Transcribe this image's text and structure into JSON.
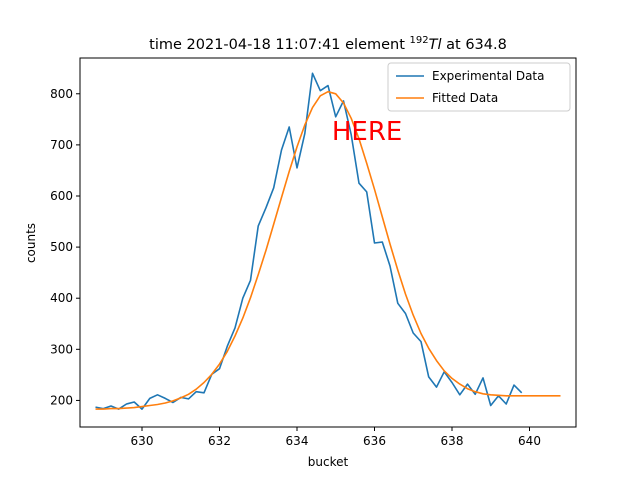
{
  "chart_data": {
    "type": "line",
    "title": {
      "prefix": "time 2021-04-18 11:07:41 element ",
      "superscript": "192",
      "element": "Tl",
      "suffix": " at 634.8"
    },
    "xlabel": "bucket",
    "ylabel": "counts",
    "xlim": [
      628.4,
      641.2
    ],
    "ylim": [
      148,
      870
    ],
    "xticks": [
      630,
      632,
      634,
      636,
      638,
      640
    ],
    "yticks": [
      200,
      300,
      400,
      500,
      600,
      700,
      800
    ],
    "grid": false,
    "legend_position": "top-right",
    "annotation": {
      "text": "HERE",
      "x": 634.9,
      "y": 710,
      "color": "#ff0000"
    },
    "series": [
      {
        "name": "Experimental Data",
        "color": "#1f77b4",
        "x": [
          628.8,
          629.0,
          629.2,
          629.4,
          629.6,
          629.8,
          630.0,
          630.2,
          630.4,
          630.6,
          630.8,
          631.0,
          631.2,
          631.4,
          631.6,
          631.8,
          632.0,
          632.2,
          632.4,
          632.6,
          632.8,
          633.0,
          633.2,
          633.4,
          633.6,
          633.8,
          634.0,
          634.2,
          634.4,
          634.6,
          634.8,
          635.0,
          635.2,
          635.4,
          635.6,
          635.8,
          636.0,
          636.2,
          636.4,
          636.6,
          636.8,
          637.0,
          637.2,
          637.4,
          637.6,
          637.8,
          638.0,
          638.2,
          638.4,
          638.6,
          638.8,
          639.0,
          639.2,
          639.4,
          639.6,
          639.8,
          640.0,
          640.2,
          640.4,
          640.6,
          640.8
        ],
        "y": [
          187,
          184,
          189,
          183,
          193,
          197,
          183,
          204,
          211,
          204,
          196,
          206,
          203,
          217,
          215,
          251,
          262,
          306,
          342,
          400,
          435,
          541,
          577,
          616,
          690,
          735,
          655,
          722,
          840,
          806,
          816,
          755,
          786,
          720,
          625,
          608,
          508,
          510,
          463,
          390,
          370,
          332,
          315,
          246,
          226,
          256,
          235,
          211,
          232,
          212,
          244,
          190,
          209,
          193,
          230,
          215,
          null,
          null,
          null,
          null,
          null
        ]
      },
      {
        "name": "Fitted Data",
        "color": "#ff7f0e",
        "x": [
          628.8,
          629.0,
          629.2,
          629.4,
          629.6,
          629.8,
          630.0,
          630.2,
          630.4,
          630.6,
          630.8,
          631.0,
          631.2,
          631.4,
          631.6,
          631.8,
          632.0,
          632.2,
          632.4,
          632.6,
          632.8,
          633.0,
          633.2,
          633.4,
          633.6,
          633.8,
          634.0,
          634.2,
          634.4,
          634.6,
          634.8,
          635.0,
          635.2,
          635.4,
          635.6,
          635.8,
          636.0,
          636.2,
          636.4,
          636.6,
          636.8,
          637.0,
          637.2,
          637.4,
          637.6,
          637.8,
          638.0,
          638.2,
          638.4,
          638.6,
          638.8,
          639.0,
          639.2,
          639.4,
          639.6,
          639.8,
          640.0,
          640.2,
          640.4,
          640.6,
          640.8
        ],
        "y": [
          183,
          183,
          184,
          184,
          185,
          186,
          188,
          190,
          192,
          195,
          199,
          205,
          212,
          222,
          235,
          251,
          271,
          296,
          326,
          361,
          401,
          446,
          494,
          545,
          597,
          648,
          696,
          739,
          773,
          796,
          804,
          800,
          782,
          752,
          712,
          664,
          613,
          559,
          506,
          455,
          408,
          367,
          331,
          302,
          278,
          258,
          243,
          232,
          223,
          217,
          213,
          211,
          210,
          209,
          209,
          209,
          209,
          209,
          209,
          209,
          209
        ]
      }
    ]
  }
}
